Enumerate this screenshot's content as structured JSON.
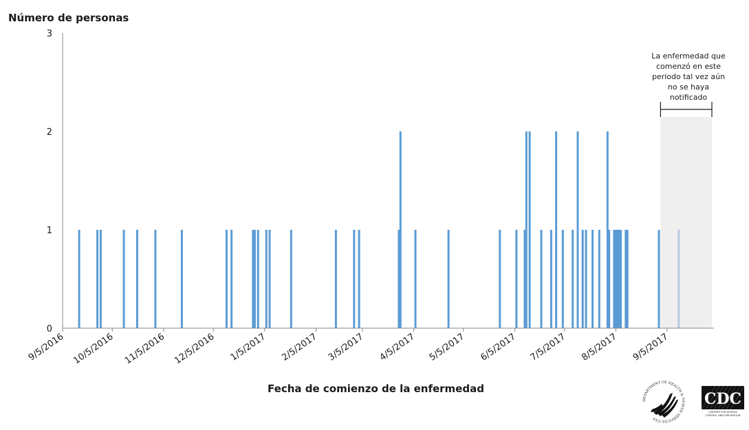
{
  "chart_data": {
    "type": "bar",
    "title": "",
    "ylabel": "Número de personas",
    "xlabel": "Fecha de comienzo de la enfermedad",
    "ylim": [
      0,
      3
    ],
    "yticks": [
      0,
      1,
      2,
      3
    ],
    "grid": false,
    "legend": null,
    "x_range": [
      "9/5/2016",
      "10/5/2017"
    ],
    "xticks": [
      "9/5/2016",
      "10/5/2016",
      "11/5/2016",
      "12/5/2016",
      "1/5/2017",
      "2/5/2017",
      "3/5/2017",
      "4/5/2017",
      "5/5/2017",
      "6/5/2017",
      "7/5/2017",
      "8/5/2017",
      "9/5/2017"
    ],
    "bar_color": "#5b9bd5",
    "pending_bar_color": "#b7c9dd",
    "annotation": {
      "text_lines": [
        "La enfermedad que",
        "comenzó en este",
        "periodo tal vez aún",
        "no se haya",
        "notificado"
      ],
      "shaded_from_day": 361,
      "shaded_to_day": 392,
      "shade_color": "#efefef"
    },
    "points": [
      {
        "date": "9/15/2016",
        "day": 10,
        "value": 1
      },
      {
        "date": "9/26/2016",
        "day": 21,
        "value": 1
      },
      {
        "date": "9/28/2016",
        "day": 23,
        "value": 1
      },
      {
        "date": "10/12/2016",
        "day": 37,
        "value": 1
      },
      {
        "date": "10/20/2016",
        "day": 45,
        "value": 1
      },
      {
        "date": "10/31/2016",
        "day": 56,
        "value": 1
      },
      {
        "date": "11/16/2016",
        "day": 72,
        "value": 1
      },
      {
        "date": "12/13/2016",
        "day": 99,
        "value": 1
      },
      {
        "date": "12/16/2016",
        "day": 102,
        "value": 1
      },
      {
        "date": "12/29/2016",
        "day": 115,
        "value": 1
      },
      {
        "date": "12/30/2016",
        "day": 116,
        "value": 1
      },
      {
        "date": "1/1/2017",
        "day": 118,
        "value": 1
      },
      {
        "date": "1/6/2017",
        "day": 123,
        "value": 1
      },
      {
        "date": "1/8/2017",
        "day": 125,
        "value": 1
      },
      {
        "date": "1/21/2017",
        "day": 138,
        "value": 1
      },
      {
        "date": "2/17/2017",
        "day": 165,
        "value": 1
      },
      {
        "date": "2/28/2017",
        "day": 176,
        "value": 1
      },
      {
        "date": "3/3/2017",
        "day": 179,
        "value": 1
      },
      {
        "date": "3/27/2017",
        "day": 203,
        "value": 1
      },
      {
        "date": "3/28/2017",
        "day": 204,
        "value": 2
      },
      {
        "date": "4/6/2017",
        "day": 213,
        "value": 1
      },
      {
        "date": "4/26/2017",
        "day": 233,
        "value": 1
      },
      {
        "date": "5/27/2017",
        "day": 264,
        "value": 1
      },
      {
        "date": "6/6/2017",
        "day": 274,
        "value": 1
      },
      {
        "date": "6/11/2017",
        "day": 279,
        "value": 1
      },
      {
        "date": "6/12/2017",
        "day": 280,
        "value": 2
      },
      {
        "date": "6/14/2017",
        "day": 282,
        "value": 2
      },
      {
        "date": "6/21/2017",
        "day": 289,
        "value": 1
      },
      {
        "date": "6/27/2017",
        "day": 295,
        "value": 1
      },
      {
        "date": "6/30/2017",
        "day": 298,
        "value": 2
      },
      {
        "date": "7/4/2017",
        "day": 302,
        "value": 1
      },
      {
        "date": "7/10/2017",
        "day": 308,
        "value": 1
      },
      {
        "date": "7/13/2017",
        "day": 311,
        "value": 2
      },
      {
        "date": "7/16/2017",
        "day": 314,
        "value": 1
      },
      {
        "date": "7/18/2017",
        "day": 316,
        "value": 1
      },
      {
        "date": "7/22/2017",
        "day": 320,
        "value": 1
      },
      {
        "date": "7/26/2017",
        "day": 324,
        "value": 1
      },
      {
        "date": "7/31/2017",
        "day": 329,
        "value": 2
      },
      {
        "date": "8/1/2017",
        "day": 330,
        "value": 1
      },
      {
        "date": "8/4/2017",
        "day": 333,
        "value": 1
      },
      {
        "date": "8/5/2017",
        "day": 334,
        "value": 1
      },
      {
        "date": "8/6/2017",
        "day": 335,
        "value": 1
      },
      {
        "date": "8/7/2017",
        "day": 336,
        "value": 1
      },
      {
        "date": "8/8/2017",
        "day": 337,
        "value": 1
      },
      {
        "date": "8/11/2017",
        "day": 340,
        "value": 1
      },
      {
        "date": "8/12/2017",
        "day": 341,
        "value": 1
      },
      {
        "date": "8/31/2017",
        "day": 360,
        "value": 1
      },
      {
        "date": "9/12/2017",
        "day": 372,
        "value": 1,
        "pending": true
      }
    ]
  },
  "logos": {
    "hhs": "DEPARTMENT OF HEALTH & HUMAN SERVICES USA",
    "cdc_mark": "CDC",
    "cdc_sub1": "CENTERS FOR DISEASE",
    "cdc_sub2": "CONTROL AND PREVENTION"
  }
}
